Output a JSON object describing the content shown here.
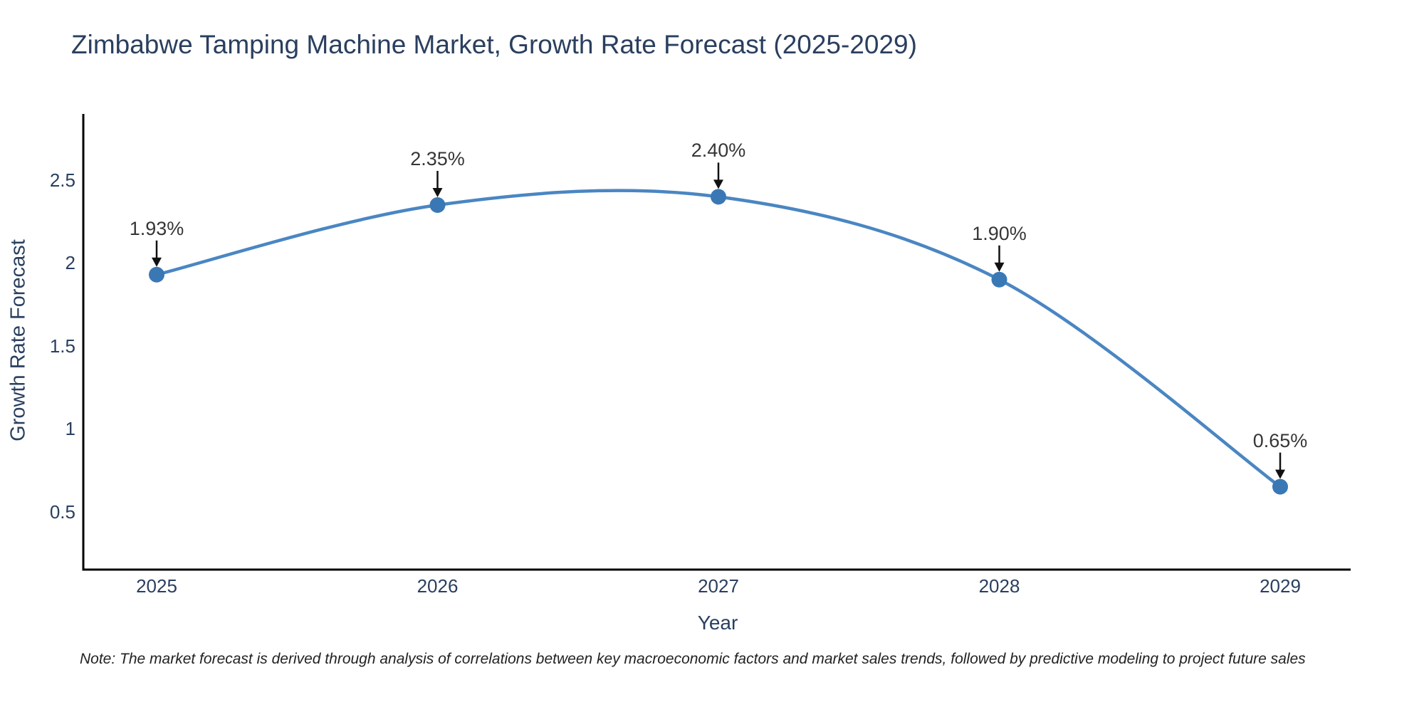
{
  "title": "Zimbabwe Tamping Machine Market, Growth Rate Forecast (2025-2029)",
  "note": "Note: The market forecast is derived through analysis of correlations between key macroeconomic factors and market sales trends, followed by predictive modeling to project future sales",
  "chart_data": {
    "type": "line",
    "line_shape": "spline",
    "title": "Zimbabwe Tamping Machine Market, Growth Rate Forecast (2025-2029)",
    "xlabel": "Year",
    "ylabel": "Growth Rate Forecast",
    "categories": [
      "2025",
      "2026",
      "2027",
      "2028",
      "2029"
    ],
    "series": [
      {
        "name": "Growth Rate Forecast",
        "values": [
          1.93,
          2.35,
          2.4,
          1.9,
          0.65
        ]
      }
    ],
    "point_labels": [
      "1.93%",
      "2.35%",
      "2.40%",
      "1.90%",
      "0.65%"
    ],
    "ytick_labels": [
      "2.5",
      "2",
      "1.5",
      "1",
      "0.5"
    ],
    "ytick_values": [
      2.5,
      2,
      1.5,
      1,
      0.5
    ],
    "ylim": [
      0.15,
      2.9
    ],
    "grid": false,
    "legend_position": "none",
    "colors": {
      "line": "#4a86c2",
      "marker": "#3a78b5",
      "axis": "#000000",
      "text": "#2a3f5f",
      "annotation_text": "#363636",
      "annotation_arrow": "#111111",
      "background": "#ffffff"
    }
  }
}
